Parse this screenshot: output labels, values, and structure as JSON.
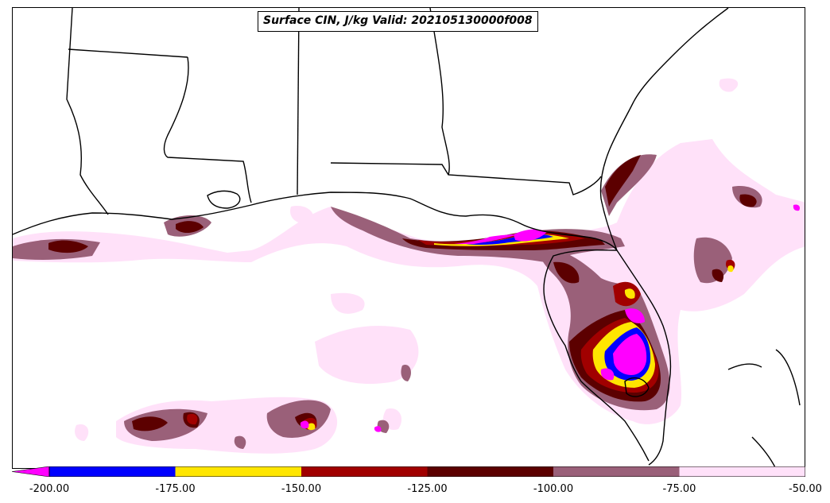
{
  "title": "Surface CIN, J/kg Valid: 202105130000f008",
  "colorbar": {
    "bins": [
      {
        "from": -200,
        "to": -175,
        "color": "#0000ff"
      },
      {
        "from": -175,
        "to": -150,
        "color": "#ffe600"
      },
      {
        "from": -150,
        "to": -125,
        "color": "#a10000"
      },
      {
        "from": -125,
        "to": -100,
        "color": "#5c0000"
      },
      {
        "from": -100,
        "to": -75,
        "color": "#9a6079"
      },
      {
        "from": -75,
        "to": -50,
        "color": "#ffe1f9"
      }
    ],
    "under_color": "#ff00ff",
    "tick_labels": [
      "-200.00",
      "-175.00",
      "-150.00",
      "-125.00",
      "-100.00",
      "-75.00",
      "-50.00"
    ]
  },
  "map_region": "US Gulf Coast and Florida",
  "colors": {
    "very_light": "#ffe1f9",
    "mauve": "#9a6079",
    "dark_red": "#5c0000",
    "red": "#a10000",
    "yellow": "#ffe600",
    "blue": "#0000ff",
    "magenta": "#ff00ff",
    "boundary": "#000000"
  }
}
